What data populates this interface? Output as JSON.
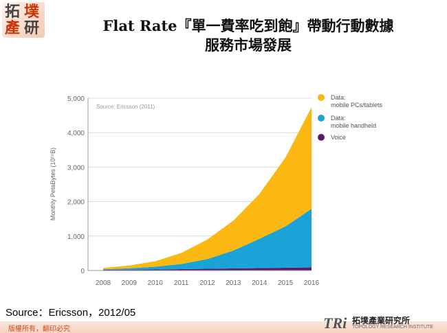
{
  "slide": {
    "logo": {
      "chars": [
        "拓",
        "墣",
        "產",
        "研"
      ],
      "colors": [
        "#444444",
        "#cc3300",
        "#cc3300",
        "#444444"
      ]
    },
    "title": {
      "line1": "Flat Rate『單一費率吃到飽』帶動行動數據",
      "line2": "服務市場發展"
    },
    "source": "Source：Ericsson，2012/05",
    "footer": {
      "copyright": "版權所有，翻印必究",
      "tri_mark": "TRi",
      "tri_name": "拓墣產業研究所",
      "tri_sub": "TOPOLOGY RESEARCH INSTITUTE"
    }
  },
  "chart_data": {
    "type": "area",
    "stacked": true,
    "annotation": "Source: Ericsson (2011)",
    "ylabel": "Monthly PetaBytes (10¹⁵B)",
    "xlabel": "",
    "ylim": [
      0,
      5000
    ],
    "yticks": [
      0,
      1000,
      2000,
      3000,
      4000,
      5000
    ],
    "ytick_labels": [
      "0",
      "1,000",
      "2,000",
      "3,000",
      "4,000",
      "5,000"
    ],
    "x": [
      2008,
      2009,
      2010,
      2011,
      2012,
      2013,
      2014,
      2015,
      2016
    ],
    "xtick_labels": [
      "2008",
      "2009",
      "2010",
      "2011",
      "2012",
      "2013",
      "2014",
      "2015",
      "2016"
    ],
    "grid": "horizontal",
    "legend_position": "right",
    "series": [
      {
        "name": "Voice",
        "color": "#5c1a6b",
        "values": [
          20,
          25,
          30,
          40,
          50,
          60,
          70,
          80,
          90
        ]
      },
      {
        "name": "Data: mobile handheld",
        "color": "#1aa3d6",
        "values": [
          15,
          40,
          80,
          150,
          280,
          520,
          850,
          1200,
          1700
        ]
      },
      {
        "name": "Data: mobile PCs/tablets",
        "color": "#fbb813",
        "values": [
          40,
          80,
          160,
          320,
          570,
          870,
          1300,
          2000,
          2950
        ]
      }
    ],
    "legend": [
      {
        "line1": "Data:",
        "line2": "mobile PCs/tablets",
        "color": "#fbb813"
      },
      {
        "line1": "Data:",
        "line2": "mobile handheld",
        "color": "#1aa3d6"
      },
      {
        "line1": "Voice",
        "line2": "",
        "color": "#5c1a6b"
      }
    ]
  }
}
